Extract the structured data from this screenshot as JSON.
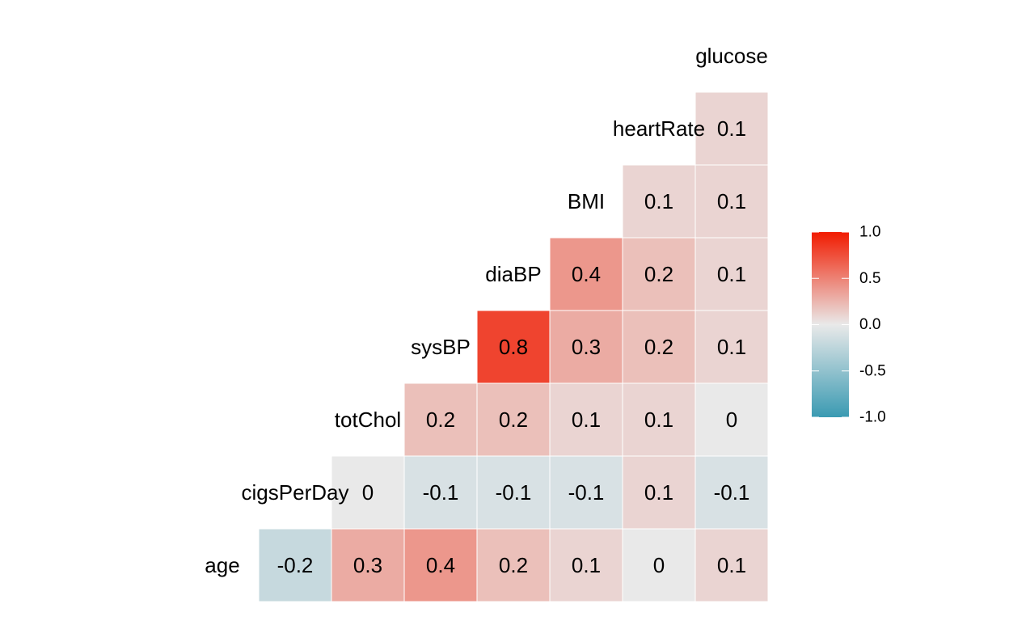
{
  "chart_data": {
    "type": "heatmap",
    "variables": [
      "age",
      "cigsPerDay",
      "totChol",
      "sysBP",
      "diaBP",
      "BMI",
      "heartRate",
      "glucose"
    ],
    "cells": [
      {
        "row": "age",
        "col": "cigsPerDay",
        "value": -0.2,
        "label": "-0.2"
      },
      {
        "row": "age",
        "col": "totChol",
        "value": 0.3,
        "label": "0.3"
      },
      {
        "row": "age",
        "col": "sysBP",
        "value": 0.4,
        "label": "0.4"
      },
      {
        "row": "age",
        "col": "diaBP",
        "value": 0.2,
        "label": "0.2"
      },
      {
        "row": "age",
        "col": "BMI",
        "value": 0.1,
        "label": "0.1"
      },
      {
        "row": "age",
        "col": "heartRate",
        "value": 0.0,
        "label": "0"
      },
      {
        "row": "age",
        "col": "glucose",
        "value": 0.1,
        "label": "0.1"
      },
      {
        "row": "cigsPerDay",
        "col": "totChol",
        "value": 0.0,
        "label": "0"
      },
      {
        "row": "cigsPerDay",
        "col": "sysBP",
        "value": -0.1,
        "label": "-0.1"
      },
      {
        "row": "cigsPerDay",
        "col": "diaBP",
        "value": -0.1,
        "label": "-0.1"
      },
      {
        "row": "cigsPerDay",
        "col": "BMI",
        "value": -0.1,
        "label": "-0.1"
      },
      {
        "row": "cigsPerDay",
        "col": "heartRate",
        "value": 0.1,
        "label": "0.1"
      },
      {
        "row": "cigsPerDay",
        "col": "glucose",
        "value": -0.1,
        "label": "-0.1"
      },
      {
        "row": "totChol",
        "col": "sysBP",
        "value": 0.2,
        "label": "0.2"
      },
      {
        "row": "totChol",
        "col": "diaBP",
        "value": 0.2,
        "label": "0.2"
      },
      {
        "row": "totChol",
        "col": "BMI",
        "value": 0.1,
        "label": "0.1"
      },
      {
        "row": "totChol",
        "col": "heartRate",
        "value": 0.1,
        "label": "0.1"
      },
      {
        "row": "totChol",
        "col": "glucose",
        "value": 0.0,
        "label": "0"
      },
      {
        "row": "sysBP",
        "col": "diaBP",
        "value": 0.8,
        "label": "0.8"
      },
      {
        "row": "sysBP",
        "col": "BMI",
        "value": 0.3,
        "label": "0.3"
      },
      {
        "row": "sysBP",
        "col": "heartRate",
        "value": 0.2,
        "label": "0.2"
      },
      {
        "row": "sysBP",
        "col": "glucose",
        "value": 0.1,
        "label": "0.1"
      },
      {
        "row": "diaBP",
        "col": "BMI",
        "value": 0.4,
        "label": "0.4"
      },
      {
        "row": "diaBP",
        "col": "heartRate",
        "value": 0.2,
        "label": "0.2"
      },
      {
        "row": "diaBP",
        "col": "glucose",
        "value": 0.1,
        "label": "0.1"
      },
      {
        "row": "BMI",
        "col": "heartRate",
        "value": 0.1,
        "label": "0.1"
      },
      {
        "row": "BMI",
        "col": "glucose",
        "value": 0.1,
        "label": "0.1"
      },
      {
        "row": "heartRate",
        "col": "glucose",
        "value": 0.1,
        "label": "0.1"
      }
    ],
    "legend": {
      "ticks": [
        1.0,
        0.5,
        0.0,
        -0.5,
        -1.0
      ],
      "tick_labels": [
        "1.0",
        "0.5",
        "0.0",
        "-0.5",
        "-1.0"
      ],
      "range": [
        -1,
        1
      ],
      "position": "right"
    },
    "colors": {
      "low": "#3A9AB2",
      "mid": "#E9E9E9",
      "high": "#F11B00",
      "cell_border": "#FFFFFF"
    }
  }
}
